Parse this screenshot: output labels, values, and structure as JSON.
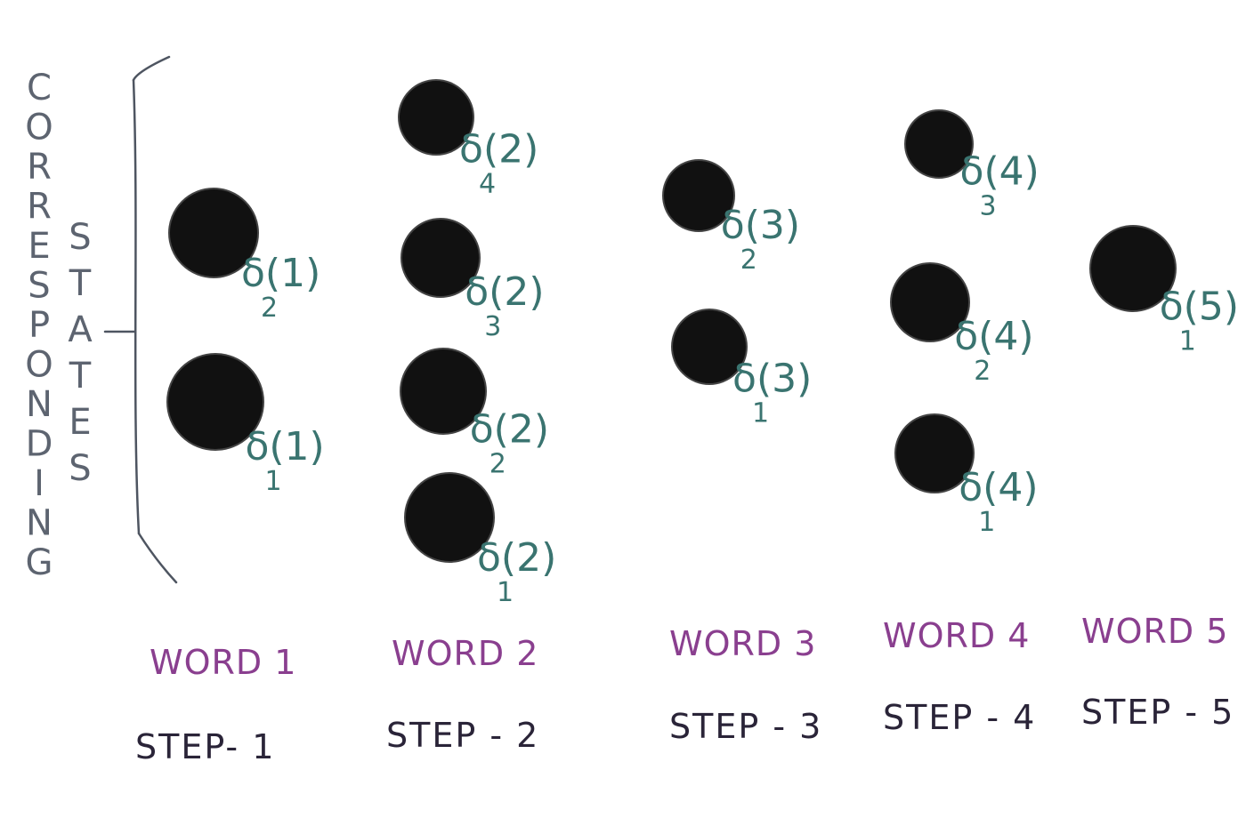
{
  "side_label": {
    "outer": "CORRESPONDING",
    "inner": "STATES"
  },
  "steps": [
    {
      "word": "WORD 1",
      "step": "STEP- 1",
      "states": [
        {
          "base": "δ(1)",
          "sub": "2"
        },
        {
          "base": "δ(1)",
          "sub": "1"
        }
      ]
    },
    {
      "word": "WORD 2",
      "step": "STEP - 2",
      "states": [
        {
          "base": "δ(2)",
          "sub": "4"
        },
        {
          "base": "δ(2)",
          "sub": "3"
        },
        {
          "base": "δ(2)",
          "sub": "2"
        },
        {
          "base": "δ(2)",
          "sub": "1"
        }
      ]
    },
    {
      "word": "WORD 3",
      "step": "STEP - 3",
      "states": [
        {
          "base": "δ(3)",
          "sub": "2"
        },
        {
          "base": "δ(3)",
          "sub": "1"
        }
      ]
    },
    {
      "word": "WORD 4",
      "step": "STEP - 4",
      "states": [
        {
          "base": "δ(4)",
          "sub": "3"
        },
        {
          "base": "δ(4)",
          "sub": "2"
        },
        {
          "base": "δ(4)",
          "sub": "1"
        }
      ]
    },
    {
      "word": "WORD 5",
      "step": "STEP - 5",
      "states": [
        {
          "base": "δ(5)",
          "sub": "1"
        }
      ]
    }
  ],
  "colors": {
    "node": "#111111",
    "state_label": "#3a7470",
    "word_label": "#8a3f8f",
    "step_label": "#2a2438",
    "side_label": "#5d6470"
  }
}
